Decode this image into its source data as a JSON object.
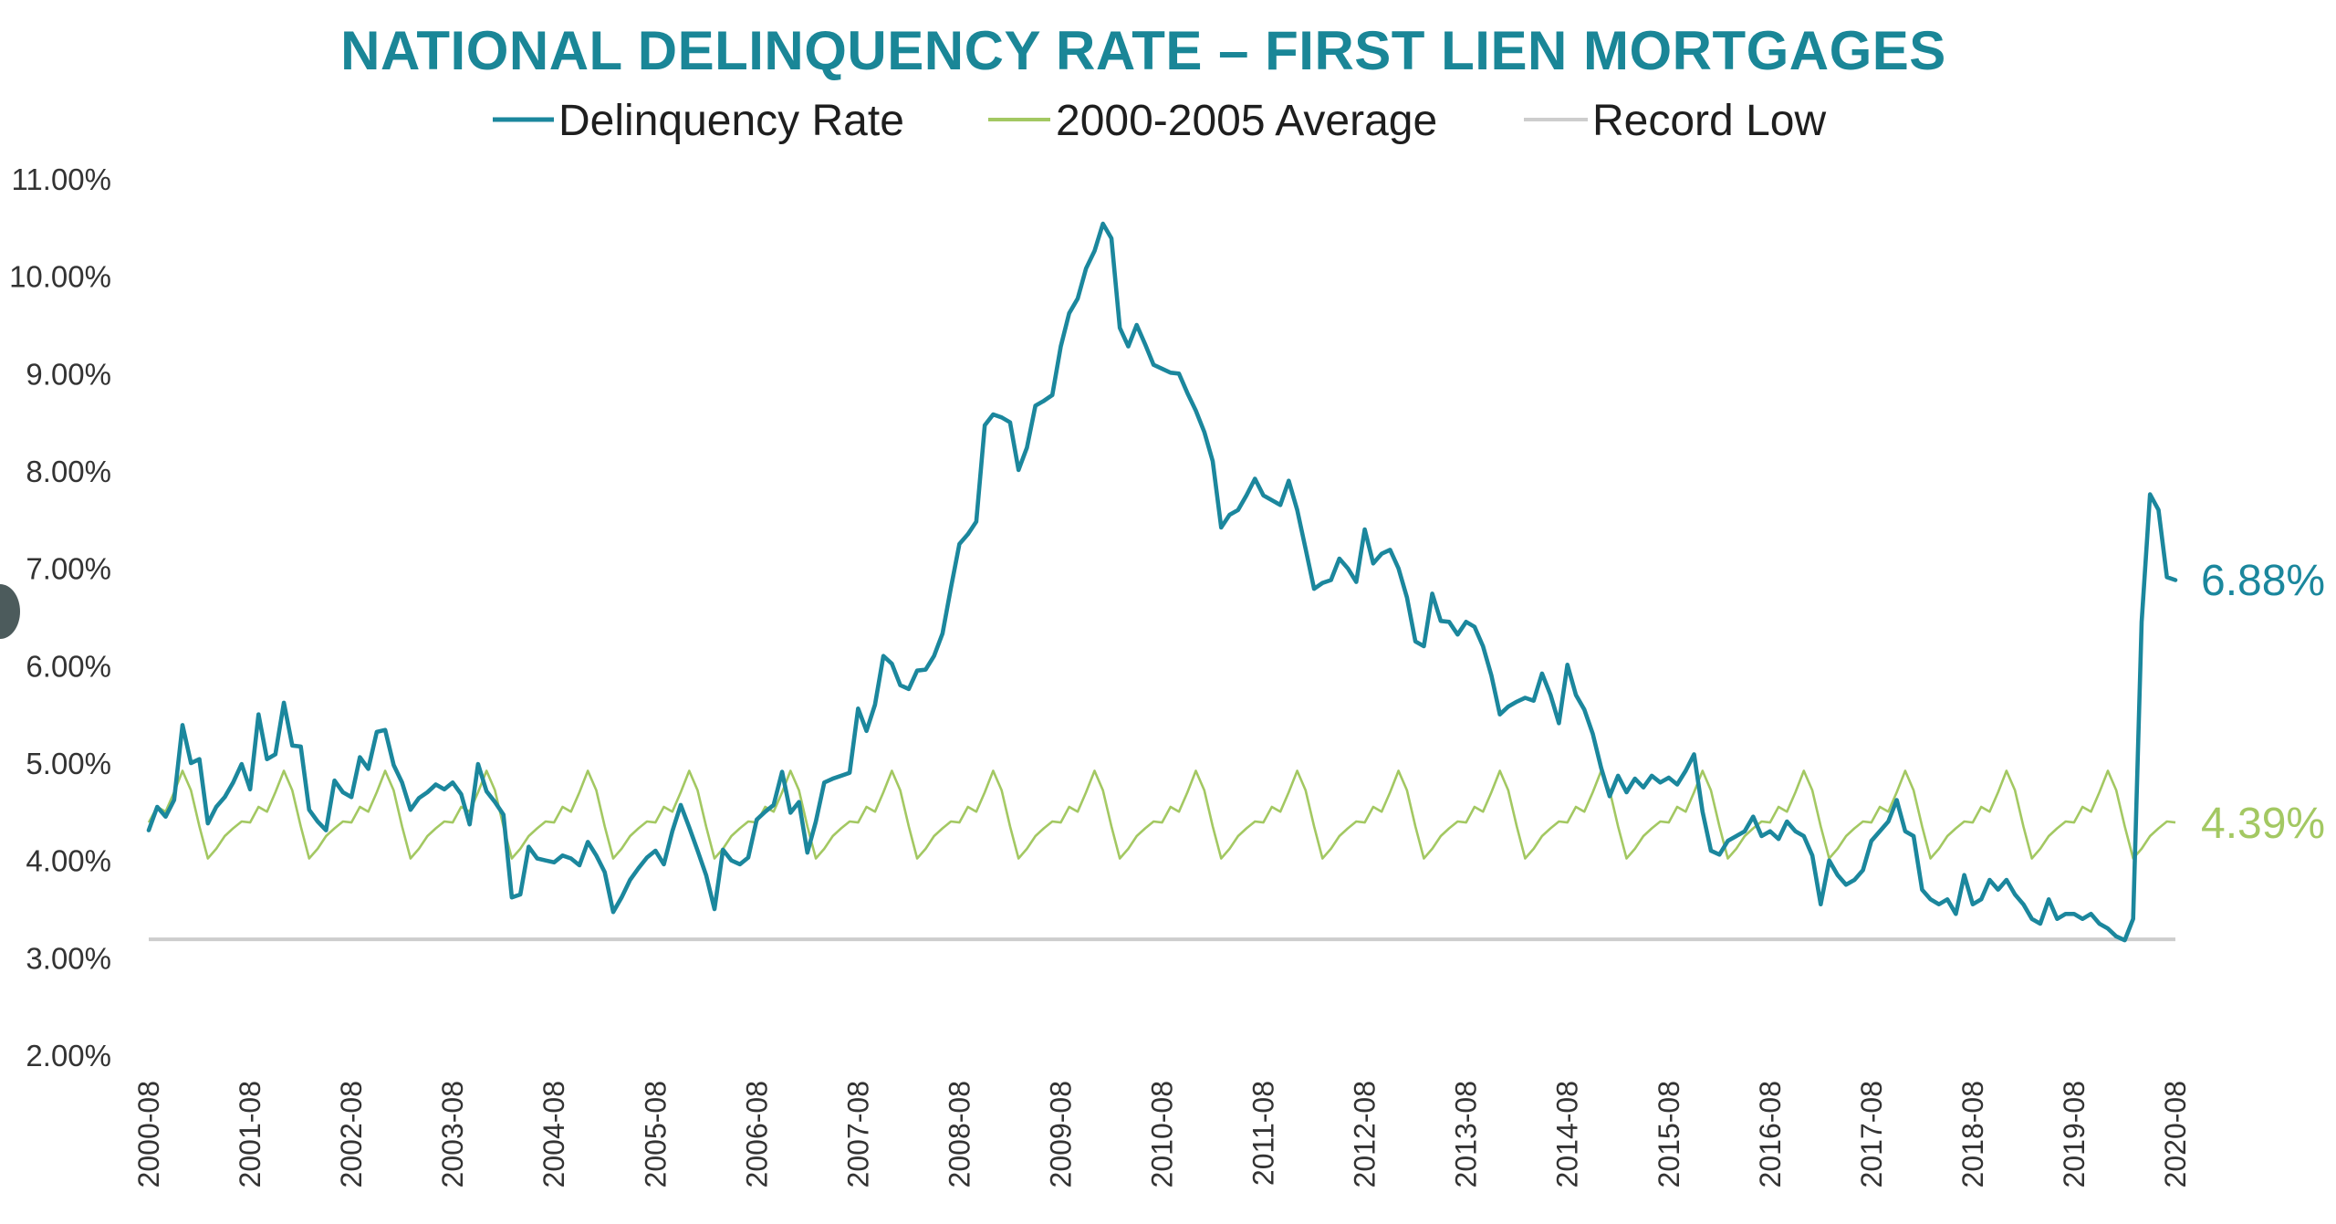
{
  "chart_data": {
    "type": "line",
    "title": "NATIONAL DELINQUENCY RATE – FIRST LIEN MORTGAGES",
    "xlabel": "",
    "ylabel": "",
    "ylim": [
      2,
      11
    ],
    "grid": false,
    "legend_position": "top-center",
    "y_ticks": [
      "2.00%",
      "3.00%",
      "4.00%",
      "5.00%",
      "6.00%",
      "7.00%",
      "8.00%",
      "9.00%",
      "10.00%",
      "11.00%"
    ],
    "y_tick_values": [
      2,
      3,
      4,
      5,
      6,
      7,
      8,
      9,
      10,
      11
    ],
    "x_start": "2000-08",
    "x_end": "2020-08",
    "x_frequency": "monthly",
    "x_ticks": [
      "2000-08",
      "2001-08",
      "2002-08",
      "2003-08",
      "2004-08",
      "2005-08",
      "2006-08",
      "2007-08",
      "2008-08",
      "2009-08",
      "2010-08",
      "2011-08",
      "2012-08",
      "2013-08",
      "2014-08",
      "2015-08",
      "2016-08",
      "2017-08",
      "2018-08",
      "2019-08",
      "2020-08"
    ],
    "series": [
      {
        "name": "Delinquency Rate",
        "color": "#1b879d",
        "end_label": "6.88%",
        "values": [
          4.31,
          4.55,
          4.45,
          4.62,
          5.39,
          5.0,
          5.04,
          4.38,
          4.55,
          4.65,
          4.8,
          4.99,
          4.73,
          5.5,
          5.04,
          5.09,
          5.62,
          5.18,
          5.17,
          4.52,
          4.4,
          4.31,
          4.82,
          4.7,
          4.65,
          5.06,
          4.94,
          5.32,
          5.34,
          4.98,
          4.8,
          4.52,
          4.64,
          4.7,
          4.78,
          4.73,
          4.8,
          4.68,
          4.37,
          4.99,
          4.71,
          4.6,
          4.47,
          3.62,
          3.65,
          4.14,
          4.02,
          4.0,
          3.98,
          4.05,
          4.02,
          3.95,
          4.19,
          4.05,
          3.88,
          3.47,
          3.62,
          3.8,
          3.92,
          4.03,
          4.1,
          3.96,
          4.3,
          4.57,
          4.34,
          4.1,
          3.85,
          3.5,
          4.11,
          4.0,
          3.96,
          4.03,
          4.42,
          4.5,
          4.57,
          4.91,
          4.49,
          4.6,
          4.08,
          4.4,
          4.8,
          4.84,
          4.87,
          4.9,
          5.56,
          5.33,
          5.6,
          6.1,
          6.02,
          5.8,
          5.76,
          5.95,
          5.96,
          6.1,
          6.33,
          6.8,
          7.25,
          7.35,
          7.48,
          8.47,
          8.58,
          8.55,
          8.5,
          8.01,
          8.24,
          8.67,
          8.72,
          8.78,
          9.28,
          9.62,
          9.77,
          10.08,
          10.26,
          10.54,
          10.39,
          9.47,
          9.28,
          9.5,
          9.3,
          9.09,
          9.05,
          9.01,
          9.0,
          8.8,
          8.62,
          8.4,
          8.1,
          7.42,
          7.55,
          7.6,
          7.75,
          7.92,
          7.75,
          7.7,
          7.65,
          7.9,
          7.6,
          7.2,
          6.79,
          6.85,
          6.88,
          7.1,
          7.0,
          6.86,
          7.4,
          7.05,
          7.15,
          7.19,
          7.0,
          6.7,
          6.25,
          6.2,
          6.74,
          6.46,
          6.45,
          6.32,
          6.45,
          6.4,
          6.2,
          5.9,
          5.5,
          5.58,
          5.63,
          5.67,
          5.64,
          5.92,
          5.7,
          5.41,
          6.01,
          5.7,
          5.55,
          5.3,
          4.95,
          4.66,
          4.87,
          4.7,
          4.84,
          4.75,
          4.87,
          4.8,
          4.85,
          4.78,
          4.92,
          5.09,
          4.5,
          4.1,
          4.06,
          4.2,
          4.25,
          4.3,
          4.45,
          4.25,
          4.3,
          4.22,
          4.4,
          4.3,
          4.25,
          4.05,
          3.55,
          4.0,
          3.85,
          3.75,
          3.8,
          3.9,
          4.2,
          4.3,
          4.4,
          4.62,
          4.3,
          4.25,
          3.7,
          3.6,
          3.55,
          3.6,
          3.45,
          3.85,
          3.55,
          3.6,
          3.8,
          3.7,
          3.8,
          3.65,
          3.55,
          3.4,
          3.35,
          3.6,
          3.4,
          3.45,
          3.45,
          3.4,
          3.45,
          3.35,
          3.3,
          3.22,
          3.18,
          3.4,
          6.45,
          7.76,
          7.6,
          6.91,
          6.88
        ]
      },
      {
        "name": "2000-2005 Average",
        "color": "#a3c862",
        "end_label": "4.39%",
        "values": [
          4.39,
          4.55,
          4.5,
          4.7,
          4.92,
          4.72,
          4.35,
          4.02,
          4.12,
          4.25,
          4.33,
          4.4,
          4.39,
          4.55,
          4.5,
          4.7,
          4.92,
          4.72,
          4.35,
          4.02,
          4.12,
          4.25,
          4.33,
          4.4,
          4.39,
          4.55,
          4.5,
          4.7,
          4.92,
          4.72,
          4.35,
          4.02,
          4.12,
          4.25,
          4.33,
          4.4,
          4.39,
          4.55,
          4.5,
          4.7,
          4.92,
          4.72,
          4.35,
          4.02,
          4.12,
          4.25,
          4.33,
          4.4,
          4.39,
          4.55,
          4.5,
          4.7,
          4.92,
          4.72,
          4.35,
          4.02,
          4.12,
          4.25,
          4.33,
          4.4,
          4.39,
          4.55,
          4.5,
          4.7,
          4.92,
          4.72,
          4.35,
          4.02,
          4.12,
          4.25,
          4.33,
          4.4,
          4.39,
          4.55,
          4.5,
          4.7,
          4.92,
          4.72,
          4.35,
          4.02,
          4.12,
          4.25,
          4.33,
          4.4,
          4.39,
          4.55,
          4.5,
          4.7,
          4.92,
          4.72,
          4.35,
          4.02,
          4.12,
          4.25,
          4.33,
          4.4,
          4.39,
          4.55,
          4.5,
          4.7,
          4.92,
          4.72,
          4.35,
          4.02,
          4.12,
          4.25,
          4.33,
          4.4,
          4.39,
          4.55,
          4.5,
          4.7,
          4.92,
          4.72,
          4.35,
          4.02,
          4.12,
          4.25,
          4.33,
          4.4,
          4.39,
          4.55,
          4.5,
          4.7,
          4.92,
          4.72,
          4.35,
          4.02,
          4.12,
          4.25,
          4.33,
          4.4,
          4.39,
          4.55,
          4.5,
          4.7,
          4.92,
          4.72,
          4.35,
          4.02,
          4.12,
          4.25,
          4.33,
          4.4,
          4.39,
          4.55,
          4.5,
          4.7,
          4.92,
          4.72,
          4.35,
          4.02,
          4.12,
          4.25,
          4.33,
          4.4,
          4.39,
          4.55,
          4.5,
          4.7,
          4.92,
          4.72,
          4.35,
          4.02,
          4.12,
          4.25,
          4.33,
          4.4,
          4.39,
          4.55,
          4.5,
          4.7,
          4.92,
          4.72,
          4.35,
          4.02,
          4.12,
          4.25,
          4.33,
          4.4,
          4.39,
          4.55,
          4.5,
          4.7,
          4.92,
          4.72,
          4.35,
          4.02,
          4.12,
          4.25,
          4.33,
          4.4,
          4.39,
          4.55,
          4.5,
          4.7,
          4.92,
          4.72,
          4.35,
          4.02,
          4.12,
          4.25,
          4.33,
          4.4,
          4.39,
          4.55,
          4.5,
          4.7,
          4.92,
          4.72,
          4.35,
          4.02,
          4.12,
          4.25,
          4.33,
          4.4,
          4.39,
          4.55,
          4.5,
          4.7,
          4.92,
          4.72,
          4.35,
          4.02,
          4.12,
          4.25,
          4.33,
          4.4,
          4.39,
          4.55,
          4.5,
          4.7,
          4.92,
          4.72,
          4.35,
          4.02,
          4.12,
          4.25,
          4.33,
          4.4,
          4.39
        ]
      },
      {
        "name": "Record Low",
        "color": "#cdcdcd",
        "constant_value": 3.19
      }
    ]
  }
}
